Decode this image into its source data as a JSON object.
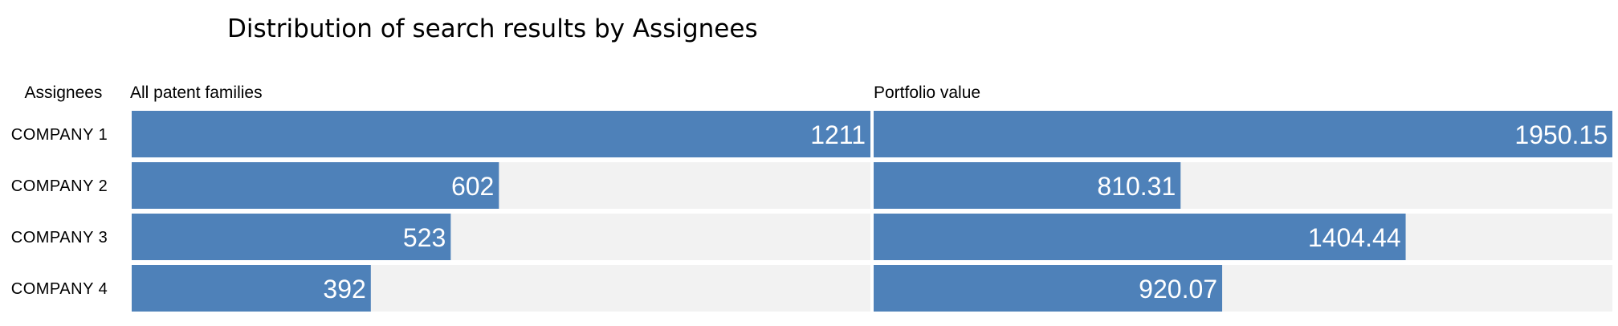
{
  "chart_data": {
    "type": "bar",
    "orientation": "horizontal",
    "title": "Distribution of search results by Assignees",
    "category_header": "Assignees",
    "categories": [
      "COMPANY 1",
      "COMPANY 2",
      "COMPANY 3",
      "COMPANY 4"
    ],
    "series": [
      {
        "name": "All patent families",
        "values": [
          1211,
          602,
          523,
          392
        ],
        "labels": [
          "1211",
          "602",
          "523",
          "392"
        ]
      },
      {
        "name": "Portfolio value",
        "values": [
          1950.15,
          810.31,
          1404.44,
          920.07
        ],
        "labels": [
          "1950.15",
          "810.31",
          "1404.44",
          "920.07"
        ]
      }
    ],
    "grid": false,
    "legend": "none",
    "colors": {
      "bar": "#4e81b9",
      "track": "#f2f2f2",
      "value_text": "#ffffff"
    }
  }
}
